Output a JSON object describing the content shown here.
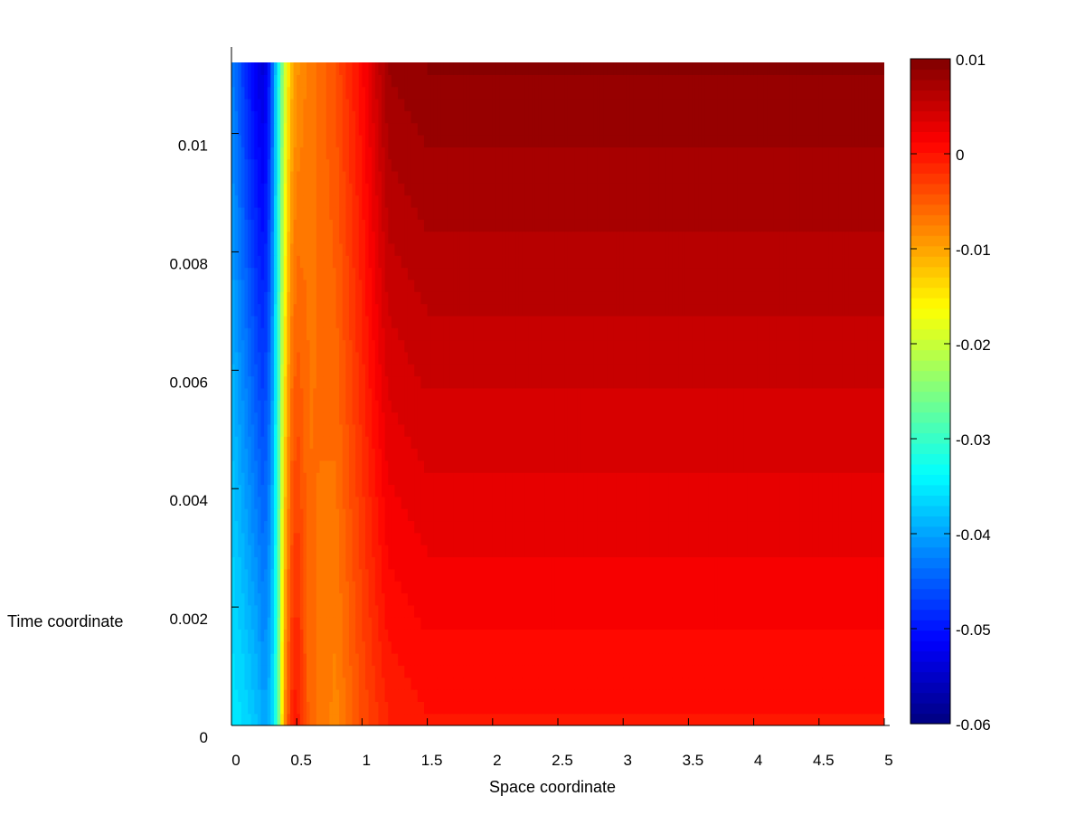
{
  "chart_data": {
    "type": "heatmap",
    "title": "",
    "xlabel": "Space coordinate",
    "ylabel": "Time coordinate",
    "xlim": [
      0,
      5
    ],
    "ylim": [
      0,
      0.0112
    ],
    "x_ticks": [
      "0",
      "0.5",
      "1",
      "1.5",
      "2",
      "2.5",
      "3",
      "3.5",
      "4",
      "4.5",
      "5"
    ],
    "x_tick_values": [
      0,
      0.5,
      1,
      1.5,
      2,
      2.5,
      3,
      3.5,
      4,
      4.5,
      5
    ],
    "y_ticks": [
      "0",
      "0.002",
      "0.004",
      "0.006",
      "0.008",
      "0.01"
    ],
    "y_tick_values": [
      0,
      0.002,
      0.004,
      0.006,
      0.008,
      0.01
    ],
    "colorbar": {
      "min": -0.06,
      "max": 0.01,
      "ticks": [
        "0.01",
        "0",
        "-0.01",
        "-0.02",
        "-0.03",
        "-0.04",
        "-0.05",
        "-0.06"
      ],
      "tick_values": [
        0.01,
        0,
        -0.01,
        -0.02,
        -0.03,
        -0.04,
        -0.05,
        -0.06
      ],
      "colormap": "jet",
      "levels": 64
    },
    "field_profile": {
      "x": [
        0,
        0.1,
        0.2,
        0.25,
        0.3,
        0.35,
        0.4,
        0.45,
        0.5,
        0.6,
        0.8,
        1.0,
        1.2,
        1.5,
        2.0,
        3.0,
        5.0
      ],
      "value_at_t0": [
        -0.035,
        -0.036,
        -0.038,
        -0.04,
        -0.038,
        -0.03,
        -0.01,
        -0.002,
        0.0,
        -0.006,
        -0.008,
        -0.004,
        -0.001,
        0.0,
        0.0,
        0.0,
        0.0
      ],
      "value_at_tmax": [
        -0.042,
        -0.048,
        -0.053,
        -0.054,
        -0.048,
        -0.035,
        -0.022,
        -0.012,
        -0.009,
        -0.007,
        -0.004,
        0.001,
        0.008,
        0.009,
        0.009,
        0.009,
        0.009
      ]
    },
    "grid": false,
    "legend": "colorbar-right"
  }
}
